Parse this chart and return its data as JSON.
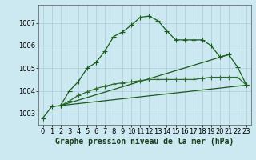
{
  "title": "Graphe pression niveau de la mer (hPa)",
  "background_color": "#cce8f0",
  "grid_color": "#aaccda",
  "line_color_dark": "#1a5c1a",
  "line_color_med": "#2d6e2d",
  "marker": "+",
  "markersize": 4,
  "linewidth": 0.9,
  "xlim": [
    -0.5,
    23.5
  ],
  "ylim": [
    1002.5,
    1007.8
  ],
  "yticks": [
    1003,
    1004,
    1005,
    1006,
    1007
  ],
  "xticks": [
    0,
    1,
    2,
    3,
    4,
    5,
    6,
    7,
    8,
    9,
    10,
    11,
    12,
    13,
    14,
    15,
    16,
    17,
    18,
    19,
    20,
    21,
    22,
    23
  ],
  "series1_x": [
    0,
    1,
    2,
    3,
    4,
    5,
    6,
    7,
    8,
    9,
    10,
    11,
    12,
    13,
    14,
    15,
    16,
    17,
    18,
    19,
    20,
    21,
    22,
    23
  ],
  "series1_y": [
    1002.8,
    1003.3,
    1003.35,
    1004.0,
    1004.4,
    1005.0,
    1005.25,
    1005.75,
    1006.4,
    1006.6,
    1006.9,
    1007.25,
    1007.3,
    1007.1,
    1006.65,
    1006.25,
    1006.25,
    1006.25,
    1006.25,
    1006.0,
    1005.5,
    1005.6,
    1005.05,
    1004.25
  ],
  "series2_x": [
    2,
    3,
    4,
    5,
    6,
    7,
    8,
    9,
    10,
    11,
    12,
    13,
    14,
    15,
    16,
    17,
    18,
    19,
    20,
    21,
    22,
    23
  ],
  "series2_y": [
    1003.35,
    1003.55,
    1003.8,
    1003.95,
    1004.1,
    1004.2,
    1004.3,
    1004.35,
    1004.4,
    1004.45,
    1004.5,
    1004.5,
    1004.5,
    1004.5,
    1004.5,
    1004.5,
    1004.55,
    1004.6,
    1004.6,
    1004.6,
    1004.6,
    1004.25
  ],
  "line3_x": [
    2,
    21
  ],
  "line3_y": [
    1003.35,
    1005.6
  ],
  "line4_x": [
    2,
    23
  ],
  "line4_y": [
    1003.35,
    1004.25
  ],
  "tick_fontsize": 6,
  "xlabel_fontsize": 7
}
